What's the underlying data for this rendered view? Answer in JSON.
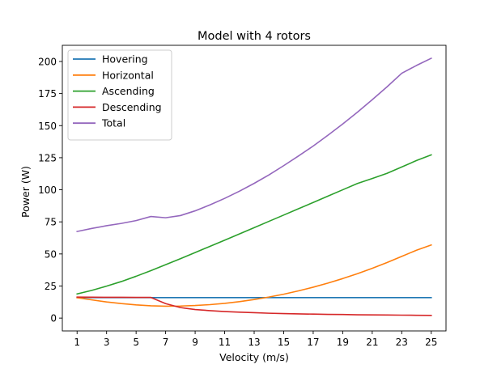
{
  "chart_data": {
    "type": "line",
    "title": "Model with 4 rotors",
    "xlabel": "Velocity (m/s)",
    "ylabel": "Power (W)",
    "xlim": [
      0,
      26
    ],
    "ylim": [
      -10,
      212.6
    ],
    "xticks": [
      1,
      3,
      5,
      7,
      9,
      11,
      13,
      15,
      17,
      19,
      21,
      23,
      25
    ],
    "yticks": [
      0,
      25,
      50,
      75,
      100,
      125,
      150,
      175,
      200
    ],
    "x": [
      1,
      2,
      3,
      4,
      5,
      6,
      7,
      8,
      9,
      10,
      11,
      12,
      13,
      14,
      15,
      16,
      17,
      18,
      19,
      20,
      21,
      22,
      23,
      24,
      25
    ],
    "legend": {
      "location": "upper left"
    },
    "grid": false,
    "series": [
      {
        "name": "Hovering",
        "color": "#1f77b4",
        "values": [
          16,
          16,
          16,
          16,
          16,
          16,
          16,
          16,
          16,
          16,
          16,
          16,
          16,
          16,
          16,
          16,
          16,
          16,
          16,
          16,
          16,
          16,
          16,
          16,
          16
        ]
      },
      {
        "name": "Horizontal",
        "color": "#ff7f0e",
        "values": [
          15.9,
          14.2,
          12.6,
          11.3,
          10.3,
          9.6,
          9.3,
          9.4,
          9.8,
          10.5,
          11.5,
          12.8,
          14.5,
          16.4,
          18.6,
          21.2,
          24.1,
          27.3,
          30.8,
          34.6,
          38.8,
          43.3,
          48.1,
          52.9,
          57.0
        ]
      },
      {
        "name": "Ascending",
        "color": "#2ca02c",
        "values": [
          18.8,
          21.6,
          24.9,
          28.5,
          32.6,
          37.0,
          41.6,
          46.3,
          51.1,
          55.9,
          60.7,
          65.6,
          70.5,
          75.4,
          80.3,
          85.2,
          90.1,
          95.1,
          100.0,
          104.9,
          108.8,
          112.8,
          117.8,
          122.8,
          127.2
        ]
      },
      {
        "name": "Descending",
        "color": "#d62728",
        "values": [
          16.4,
          16.3,
          16.2,
          16.2,
          16.1,
          16.1,
          11.3,
          8.2,
          6.7,
          5.8,
          5.1,
          4.6,
          4.2,
          3.8,
          3.5,
          3.3,
          3.1,
          2.9,
          2.8,
          2.6,
          2.5,
          2.4,
          2.3,
          2.2,
          2.1
        ]
      },
      {
        "name": "Total",
        "color": "#9467bd",
        "values": [
          67.5,
          69.9,
          72.0,
          73.8,
          76.0,
          79.2,
          78.2,
          79.9,
          83.6,
          88.2,
          93.3,
          98.9,
          105.0,
          111.6,
          118.8,
          126.3,
          134.1,
          142.5,
          151.3,
          160.5,
          170.2,
          180.2,
          190.8,
          196.9,
          202.5
        ]
      }
    ]
  }
}
